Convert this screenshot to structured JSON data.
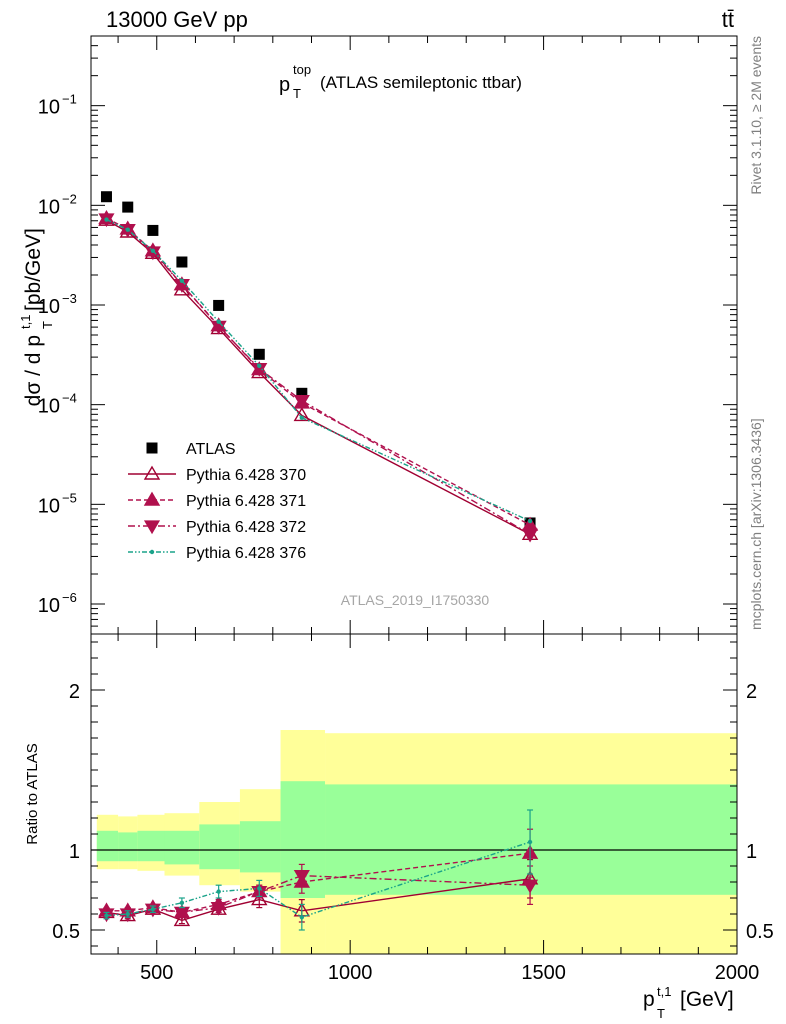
{
  "header": {
    "energy_label": "13000 GeV pp",
    "process_label": "tt̄"
  },
  "side_labels": {
    "rivet": "Rivet 3.1.10, ≥ 2M events",
    "mcplots": "mcplots.cern.ch [arXiv:1306.3436]"
  },
  "watermark": "ATLAS_2019_I1750330",
  "colors": {
    "data": "#000000",
    "pythia_370": "#a00032",
    "pythia_371": "#b0104d",
    "pythia_372": "#b0104d",
    "pythia_376": "#1aa38a",
    "band_outer": "#ffff99",
    "band_inner": "#99ff99"
  },
  "chart_data": [
    {
      "type": "scatter",
      "title_main": "p",
      "title_sup": "top",
      "title_sub": "T",
      "title_rest": "(ATLAS semileptonic ttbar)",
      "ylabel_main": "dσ / d p",
      "ylabel_sup": "t,1",
      "ylabel_sub": "T",
      "ylabel_unit": "[pb/GeV]",
      "y_scale": "log",
      "ylim": [
        5e-07,
        0.5
      ],
      "xlim": [
        330,
        2000
      ],
      "y_ticks": [
        {
          "value": 1e-06,
          "base": "10",
          "exp": "−6"
        },
        {
          "value": 1e-05,
          "base": "10",
          "exp": "−5"
        },
        {
          "value": 0.0001,
          "base": "10",
          "exp": "−4"
        },
        {
          "value": 0.001,
          "base": "10",
          "exp": "−3"
        },
        {
          "value": 0.01,
          "base": "10",
          "exp": "−2"
        },
        {
          "value": 0.1,
          "base": "10",
          "exp": "−1"
        }
      ],
      "legend_placement": "lower-left",
      "x": [
        370,
        425,
        490,
        565,
        660,
        765,
        875,
        1465
      ],
      "series": [
        {
          "name": "ATLAS",
          "key": "data",
          "marker": "square",
          "line": "none",
          "values": [
            0.0122,
            0.0096,
            0.0056,
            0.0027,
            0.00099,
            0.00032,
            0.00013,
            6.5e-06
          ]
        },
        {
          "name": "Pythia 6.428 370",
          "key": "pythia_370",
          "marker": "triangle-up-open",
          "line": "solid",
          "values": [
            0.0071,
            0.0054,
            0.0033,
            0.00142,
            0.00058,
            0.00021,
            7.8e-05,
            5e-06
          ]
        },
        {
          "name": "Pythia 6.428 371",
          "key": "pythia_371",
          "marker": "triangle-up",
          "line": "dashed",
          "values": [
            0.0074,
            0.0058,
            0.0035,
            0.0016,
            0.00062,
            0.000225,
            0.000104,
            6.2e-06
          ]
        },
        {
          "name": "Pythia 6.428 372",
          "key": "pythia_372",
          "marker": "triangle-down",
          "line": "dashdot",
          "values": [
            0.0073,
            0.0057,
            0.0034,
            0.0016,
            0.00061,
            0.00023,
            0.00011,
            5e-06
          ]
        },
        {
          "name": "Pythia 6.428 376",
          "key": "pythia_376",
          "marker": "dot",
          "line": "dashdotdot",
          "values": [
            0.0072,
            0.0057,
            0.0035,
            0.00175,
            0.00068,
            0.000245,
            7.4e-05,
            6.8e-06
          ]
        }
      ]
    },
    {
      "type": "line",
      "ylabel": "Ratio to ATLAS",
      "xlabel_main": "p",
      "xlabel_sup": "t,1",
      "xlabel_sub": "T",
      "xlabel_unit": "[GeV]",
      "ylim": [
        0.35,
        2.35
      ],
      "xlim": [
        330,
        2000
      ],
      "y_ticks": [
        0.5,
        1,
        2
      ],
      "y_tick_labels": [
        "0.5",
        "1",
        "2"
      ],
      "x_ticks": [
        500,
        1000,
        1500,
        2000
      ],
      "x_tick_labels": [
        "500",
        "1000",
        "1500",
        "2000"
      ],
      "bins": [
        {
          "lo": 345,
          "hi": 400,
          "outer_lo": 0.88,
          "outer_hi": 1.22,
          "inner_lo": 0.93,
          "inner_hi": 1.12
        },
        {
          "lo": 400,
          "hi": 450,
          "outer_lo": 0.88,
          "outer_hi": 1.21,
          "inner_lo": 0.93,
          "inner_hi": 1.11
        },
        {
          "lo": 450,
          "hi": 520,
          "outer_lo": 0.87,
          "outer_hi": 1.22,
          "inner_lo": 0.93,
          "inner_hi": 1.12
        },
        {
          "lo": 520,
          "hi": 610,
          "outer_lo": 0.84,
          "outer_hi": 1.23,
          "inner_lo": 0.91,
          "inner_hi": 1.12
        },
        {
          "lo": 610,
          "hi": 715,
          "outer_lo": 0.78,
          "outer_hi": 1.3,
          "inner_lo": 0.88,
          "inner_hi": 1.16
        },
        {
          "lo": 715,
          "hi": 820,
          "outer_lo": 0.74,
          "outer_hi": 1.38,
          "inner_lo": 0.86,
          "inner_hi": 1.18
        },
        {
          "lo": 820,
          "hi": 935,
          "outer_lo": 0.35,
          "outer_hi": 1.75,
          "inner_lo": 0.7,
          "inner_hi": 1.43
        },
        {
          "lo": 935,
          "hi": 2000,
          "outer_lo": 0.35,
          "outer_hi": 1.73,
          "inner_lo": 0.72,
          "inner_hi": 1.41
        }
      ],
      "series": [
        {
          "name": "Pythia 6.428 370",
          "key": "pythia_370",
          "marker": "triangle-up-open",
          "line": "solid",
          "values": [
            0.61,
            0.59,
            0.63,
            0.56,
            0.63,
            0.69,
            0.62,
            0.82
          ],
          "errors": [
            0.02,
            0.02,
            0.02,
            0.02,
            0.03,
            0.05,
            0.07,
            0.12
          ]
        },
        {
          "name": "Pythia 6.428 371",
          "key": "pythia_371",
          "marker": "triangle-up",
          "line": "dashed",
          "values": [
            0.62,
            0.62,
            0.64,
            0.61,
            0.66,
            0.74,
            0.8,
            0.98
          ],
          "errors": [
            0.02,
            0.02,
            0.02,
            0.02,
            0.03,
            0.04,
            0.07,
            0.15
          ]
        },
        {
          "name": "Pythia 6.428 372",
          "key": "pythia_372",
          "marker": "triangle-down",
          "line": "dashdot",
          "values": [
            0.6,
            0.6,
            0.63,
            0.61,
            0.64,
            0.74,
            0.84,
            0.78
          ],
          "errors": [
            0.02,
            0.02,
            0.02,
            0.02,
            0.03,
            0.04,
            0.07,
            0.12
          ]
        },
        {
          "name": "Pythia 6.428 376",
          "key": "pythia_376",
          "marker": "dot",
          "line": "dashdotdot",
          "values": [
            0.59,
            0.6,
            0.63,
            0.67,
            0.74,
            0.76,
            0.58,
            1.05
          ],
          "errors": [
            0.02,
            0.02,
            0.02,
            0.03,
            0.04,
            0.05,
            0.08,
            0.2
          ]
        }
      ]
    }
  ]
}
